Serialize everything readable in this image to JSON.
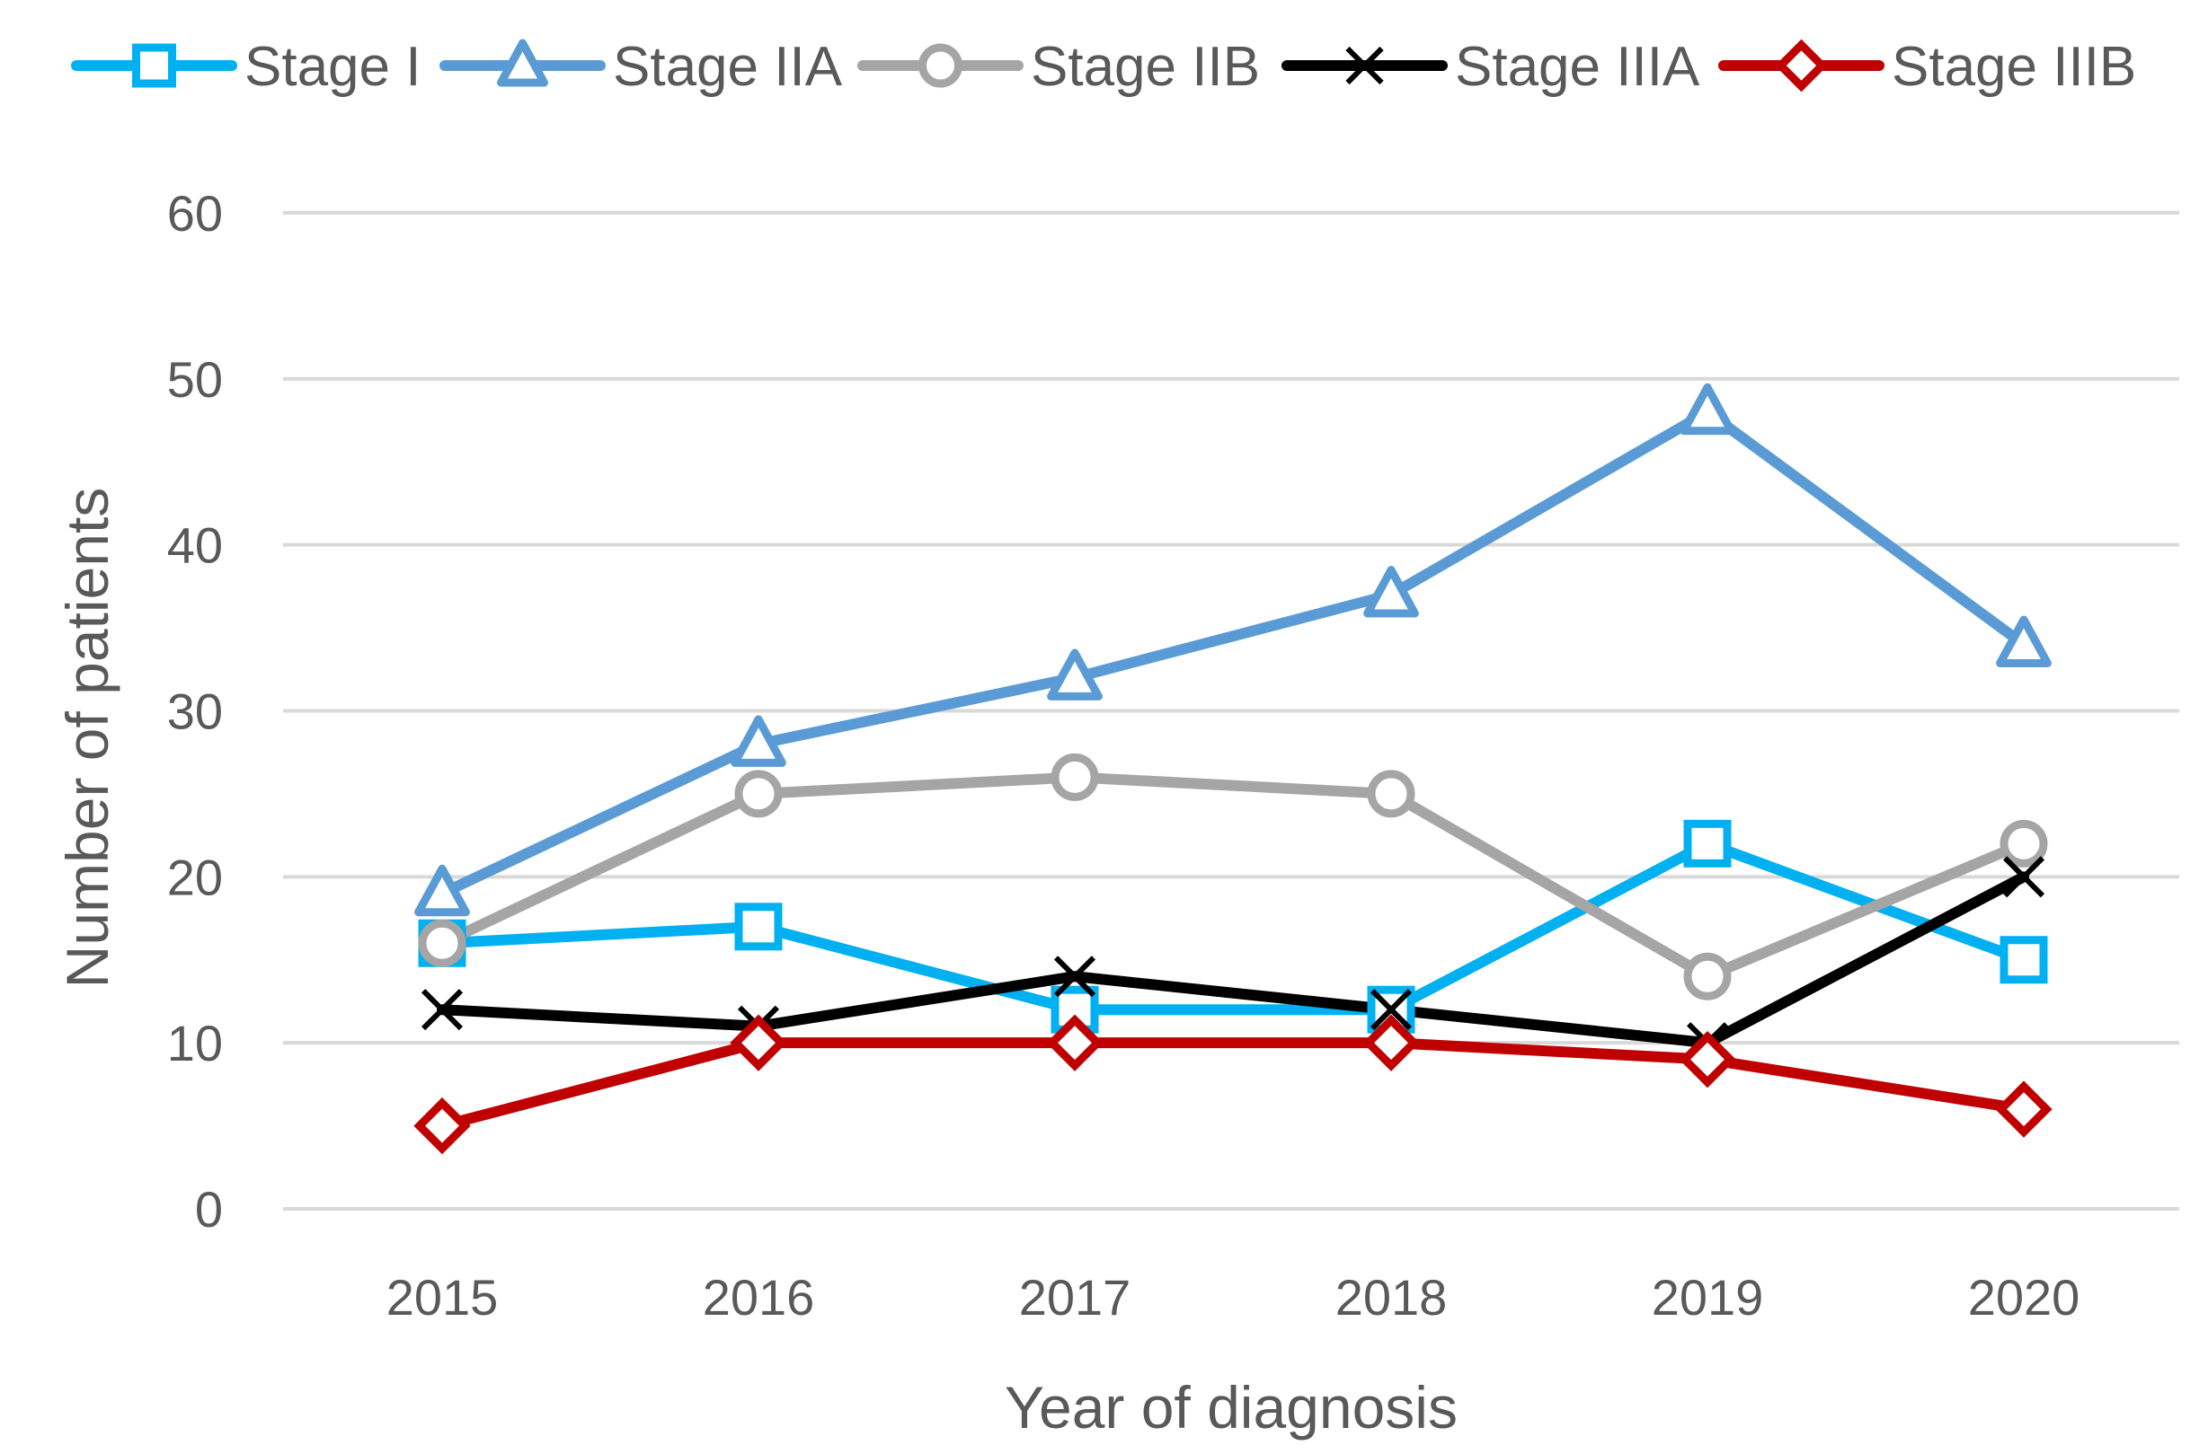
{
  "chart_data": {
    "type": "line",
    "title": "",
    "xlabel": "Year of diagnosis",
    "ylabel": "Number of patients",
    "categories": [
      "2015",
      "2016",
      "2017",
      "2018",
      "2019",
      "2020"
    ],
    "ylim": [
      0,
      60
    ],
    "yticks": [
      0,
      10,
      20,
      30,
      40,
      50,
      60
    ],
    "grid": true,
    "legend_position": "top",
    "series": [
      {
        "name": "Stage I",
        "color": "#00b0f0",
        "marker": "square",
        "values": [
          16,
          17,
          12,
          12,
          22,
          15
        ]
      },
      {
        "name": "Stage IIA",
        "color": "#5b9bd5",
        "marker": "triangle",
        "values": [
          19,
          28,
          32,
          37,
          48,
          34
        ]
      },
      {
        "name": "Stage IIB",
        "color": "#a5a5a5",
        "marker": "circle",
        "values": [
          16,
          25,
          26,
          25,
          14,
          22
        ]
      },
      {
        "name": "Stage IIIA",
        "color": "#000000",
        "marker": "x",
        "values": [
          12,
          11,
          14,
          12,
          10,
          20
        ]
      },
      {
        "name": "Stage IIIB",
        "color": "#c00000",
        "marker": "diamond",
        "values": [
          5,
          10,
          10,
          10,
          9,
          6
        ]
      }
    ]
  }
}
